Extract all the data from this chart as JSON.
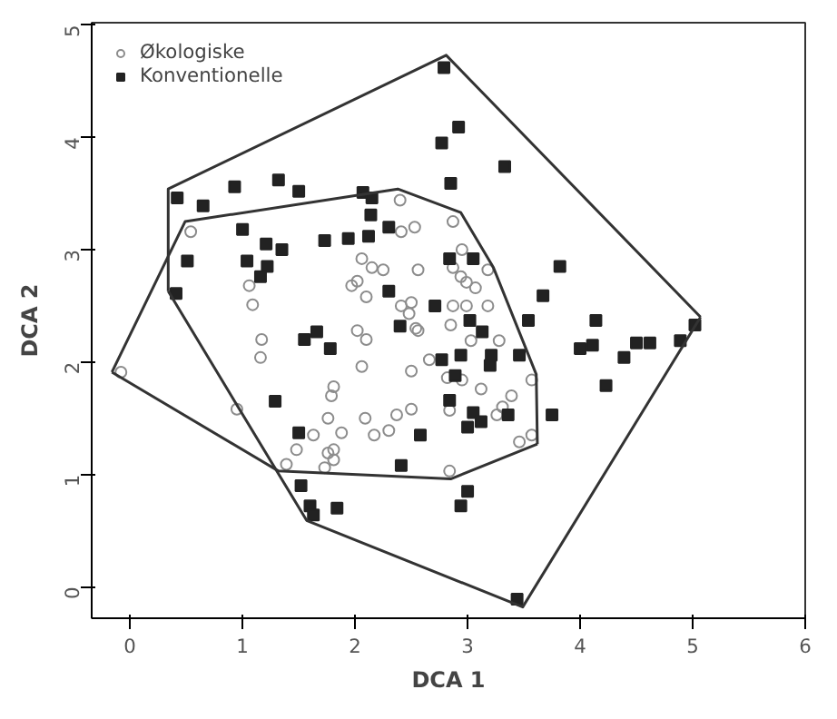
{
  "chart_data": {
    "type": "scatter",
    "xlabel": "DCA 1",
    "ylabel": "DCA 2",
    "xlim": [
      -0.34,
      6.0
    ],
    "ylim": [
      -0.28,
      5.02
    ],
    "xticks": [
      0,
      1,
      2,
      3,
      4,
      5,
      6
    ],
    "yticks": [
      0,
      1,
      2,
      3,
      4,
      5
    ],
    "grid": false,
    "legend": "top left",
    "series": [
      {
        "name": "Økologiske",
        "marker": "circle",
        "color": "#8c8c8c",
        "x": [
          0.54,
          2.4,
          2.41,
          2.53,
          2.06,
          2.15,
          2.25,
          2.56,
          1.97,
          2.02,
          1.06,
          1.09,
          2.1,
          2.41,
          2.5,
          2.87,
          2.95,
          2.87,
          2.94,
          2.99,
          3.07,
          3.18,
          2.87,
          2.99,
          3.18,
          2.54,
          2.85,
          3.03,
          3.28,
          2.66,
          2.5,
          2.82,
          2.95,
          3.12,
          3.57,
          3.39,
          3.31,
          3.26,
          2.5,
          2.84,
          3.57,
          3.46,
          2.84,
          1.17,
          1.16,
          2.1,
          2.02,
          2.06,
          1.81,
          1.79,
          0.95,
          1.76,
          1.88,
          1.63,
          1.48,
          1.81,
          1.76,
          1.81,
          1.73,
          1.39,
          2.09,
          2.17,
          2.3,
          2.37,
          -0.08,
          2.48,
          2.56
        ],
        "values": [
          3.16,
          3.44,
          3.16,
          3.2,
          2.92,
          2.84,
          2.82,
          2.82,
          2.68,
          2.72,
          2.68,
          2.51,
          2.58,
          2.5,
          2.53,
          3.25,
          3.0,
          2.84,
          2.76,
          2.71,
          2.66,
          2.82,
          2.5,
          2.5,
          2.5,
          2.3,
          2.33,
          2.19,
          2.19,
          2.02,
          1.92,
          1.86,
          1.84,
          1.76,
          1.84,
          1.7,
          1.6,
          1.53,
          1.58,
          1.57,
          1.35,
          1.29,
          1.03,
          2.2,
          2.04,
          2.2,
          2.28,
          1.96,
          1.78,
          1.7,
          1.58,
          1.5,
          1.37,
          1.35,
          1.22,
          1.22,
          1.19,
          1.13,
          1.06,
          1.09,
          1.5,
          1.35,
          1.39,
          1.53,
          1.91,
          2.43,
          2.28
        ]
      },
      {
        "name": "Konventionelle",
        "marker": "square",
        "color": "#222222",
        "x": [
          0.42,
          0.65,
          0.93,
          1.32,
          1.5,
          2.07,
          2.15,
          2.14,
          2.3,
          1.0,
          1.21,
          1.35,
          1.73,
          1.94,
          2.12,
          0.51,
          1.04,
          1.22,
          1.16,
          0.41,
          2.3,
          2.71,
          2.79,
          2.92,
          2.77,
          3.33,
          2.85,
          2.84,
          3.05,
          3.82,
          3.67,
          3.54,
          4.14,
          3.02,
          3.13,
          4.0,
          4.11,
          4.5,
          4.62,
          4.89,
          5.02,
          4.39,
          4.23,
          2.77,
          2.94,
          3.21,
          3.46,
          3.2,
          2.89,
          2.84,
          3.05,
          3.12,
          3.0,
          3.36,
          3.75,
          2.58,
          2.41,
          3.0,
          2.94,
          3.44,
          1.55,
          1.66,
          1.78,
          2.4,
          1.29,
          1.5,
          1.52,
          1.6,
          1.63,
          1.84
        ],
        "values": [
          3.46,
          3.39,
          3.56,
          3.62,
          3.52,
          3.51,
          3.46,
          3.31,
          3.2,
          3.18,
          3.05,
          3.0,
          3.08,
          3.1,
          3.12,
          2.9,
          2.9,
          2.85,
          2.76,
          2.61,
          2.63,
          2.5,
          4.62,
          4.09,
          3.95,
          3.74,
          3.59,
          2.92,
          2.92,
          2.85,
          2.59,
          2.37,
          2.37,
          2.37,
          2.27,
          2.12,
          2.15,
          2.17,
          2.17,
          2.19,
          2.33,
          2.04,
          1.79,
          2.02,
          2.06,
          2.06,
          2.06,
          1.97,
          1.88,
          1.66,
          1.55,
          1.47,
          1.42,
          1.53,
          1.53,
          1.35,
          1.08,
          0.85,
          0.72,
          -0.11,
          2.2,
          2.27,
          2.12,
          2.32,
          1.65,
          1.37,
          0.9,
          0.72,
          0.64,
          0.7
        ]
      },
      {
        "type": "line",
        "marker": "none",
        "line_style": "solid",
        "color": "#333333",
        "x": [
          0.34,
          0.34,
          2.81,
          5.07
        ],
        "values": [
          2.63,
          3.54,
          4.73,
          2.4
        ]
      },
      {
        "type": "line",
        "marker": "none",
        "line_style": "solid",
        "color": "#333333",
        "x": [
          0.34,
          1.57,
          3.49,
          5.07
        ],
        "values": [
          2.63,
          0.59,
          -0.18,
          2.4
        ]
      },
      {
        "type": "line",
        "marker": "none",
        "line_style": "solid",
        "color": "#333333",
        "x": [
          -0.16,
          0.49,
          2.38,
          2.94,
          3.23,
          3.61,
          3.62
        ],
        "values": [
          1.91,
          3.25,
          3.54,
          3.33,
          2.84,
          1.89,
          1.27
        ]
      },
      {
        "type": "line",
        "marker": "none",
        "line_style": "solid",
        "color": "#333333",
        "x": [
          -0.16,
          1.32,
          2.85,
          3.62
        ],
        "values": [
          1.91,
          1.03,
          0.96,
          1.27
        ]
      }
    ]
  }
}
